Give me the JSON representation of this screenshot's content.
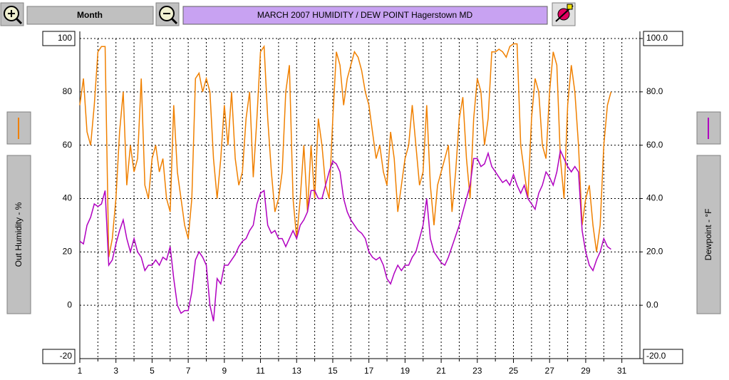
{
  "toolbar": {
    "period": "Month"
  },
  "chart_data": {
    "type": "line",
    "title": "MARCH 2007  HUMIDITY / DEW POINT  Hagerstown MD",
    "ylabel": "Out Humidity - %",
    "y2label": "Dewpoint - °F",
    "grid": true,
    "xlim": [
      1,
      32
    ],
    "xticks": [
      1,
      3,
      5,
      7,
      9,
      11,
      13,
      15,
      17,
      19,
      21,
      23,
      25,
      27,
      29,
      31
    ],
    "xminor": [
      2,
      4,
      6,
      8,
      10,
      12,
      14,
      16,
      18,
      20,
      22,
      24,
      26,
      28,
      30
    ],
    "ylim": [
      -20,
      100
    ],
    "yticks": [
      -20,
      0,
      20,
      40,
      60,
      80,
      100
    ],
    "y2lim": [
      -20,
      100
    ],
    "y2ticks": [
      {
        "value": -20,
        "label": "-20.0"
      },
      {
        "value": 0,
        "label": "0.0"
      },
      {
        "value": 20,
        "label": "20.0"
      },
      {
        "value": 40,
        "label": "40.0"
      },
      {
        "value": 60,
        "label": "60.0"
      },
      {
        "value": 80,
        "label": "80.0"
      },
      {
        "value": 100,
        "label": "100.0"
      }
    ],
    "x": [
      1.0,
      1.2,
      1.4,
      1.6,
      1.8,
      2.0,
      2.2,
      2.4,
      2.6,
      2.8,
      3.0,
      3.2,
      3.4,
      3.6,
      3.8,
      4.0,
      4.2,
      4.4,
      4.6,
      4.8,
      5.0,
      5.2,
      5.4,
      5.6,
      5.8,
      6.0,
      6.2,
      6.4,
      6.6,
      6.8,
      7.0,
      7.2,
      7.4,
      7.6,
      7.8,
      8.0,
      8.2,
      8.4,
      8.6,
      8.8,
      9.0,
      9.2,
      9.4,
      9.6,
      9.8,
      10.0,
      10.2,
      10.4,
      10.6,
      10.8,
      11.0,
      11.2,
      11.4,
      11.6,
      11.8,
      12.0,
      12.2,
      12.4,
      12.6,
      12.8,
      13.0,
      13.2,
      13.4,
      13.6,
      13.8,
      14.0,
      14.2,
      14.4,
      14.6,
      14.8,
      15.0,
      15.2,
      15.4,
      15.6,
      15.8,
      16.0,
      16.2,
      16.4,
      16.6,
      16.8,
      17.0,
      17.2,
      17.4,
      17.6,
      17.8,
      18.0,
      18.2,
      18.4,
      18.6,
      18.8,
      19.0,
      19.2,
      19.4,
      19.6,
      19.8,
      20.0,
      20.2,
      20.4,
      20.6,
      20.8,
      21.0,
      21.2,
      21.4,
      21.6,
      21.8,
      22.0,
      22.2,
      22.4,
      22.6,
      22.8,
      23.0,
      23.2,
      23.4,
      23.6,
      23.8,
      24.0,
      24.2,
      24.4,
      24.6,
      24.8,
      25.0,
      25.2,
      25.4,
      25.6,
      25.8,
      26.0,
      26.2,
      26.4,
      26.6,
      26.8,
      27.0,
      27.2,
      27.4,
      27.6,
      27.8,
      28.0,
      28.2,
      28.4,
      28.6,
      28.8,
      29.0,
      29.2,
      29.4,
      29.6,
      29.8,
      30.0,
      30.2,
      30.4
    ],
    "series": [
      {
        "name": "Out Humidity",
        "color": "#f08000",
        "axis": "y",
        "values": [
          75,
          85,
          65,
          60,
          75,
          95,
          97,
          97,
          18,
          25,
          40,
          65,
          80,
          45,
          60,
          50,
          55,
          85,
          45,
          40,
          55,
          60,
          50,
          55,
          40,
          35,
          75,
          50,
          40,
          30,
          25,
          40,
          85,
          87,
          80,
          85,
          80,
          55,
          40,
          55,
          75,
          60,
          80,
          55,
          45,
          50,
          70,
          80,
          48,
          70,
          95,
          97,
          70,
          50,
          35,
          40,
          50,
          80,
          90,
          40,
          25,
          40,
          60,
          35,
          60,
          40,
          70,
          60,
          45,
          40,
          70,
          95,
          90,
          75,
          85,
          90,
          95,
          93,
          88,
          80,
          75,
          65,
          55,
          60,
          50,
          45,
          65,
          55,
          35,
          45,
          55,
          60,
          75,
          60,
          45,
          50,
          75,
          45,
          30,
          45,
          50,
          55,
          60,
          35,
          50,
          70,
          78,
          55,
          40,
          70,
          85,
          80,
          60,
          70,
          95,
          95,
          96,
          95,
          93,
          97,
          98,
          98,
          60,
          50,
          40,
          70,
          85,
          80,
          60,
          55,
          80,
          95,
          90,
          55,
          40,
          75,
          90,
          80,
          60,
          30,
          40,
          45,
          30,
          20,
          30,
          60,
          75,
          80
        ]
      },
      {
        "name": "Dewpoint",
        "color": "#b000c0",
        "axis": "y2",
        "values": [
          24,
          23,
          30,
          33,
          38,
          37,
          38,
          43,
          15,
          17,
          23,
          28,
          32,
          25,
          20,
          25,
          20,
          18,
          13,
          15,
          15,
          17,
          15,
          18,
          17,
          22,
          10,
          0,
          -3,
          -2,
          -2,
          5,
          17,
          20,
          18,
          15,
          0,
          -6,
          10,
          8,
          15,
          15,
          17,
          19,
          22,
          24,
          25,
          28,
          30,
          38,
          42,
          43,
          30,
          27,
          28,
          25,
          25,
          22,
          25,
          28,
          25,
          30,
          32,
          35,
          43,
          43,
          40,
          40,
          45,
          50,
          54,
          53,
          50,
          40,
          35,
          32,
          30,
          28,
          27,
          25,
          20,
          18,
          17,
          18,
          15,
          10,
          8,
          12,
          15,
          13,
          15,
          15,
          18,
          20,
          25,
          30,
          40,
          25,
          20,
          18,
          16,
          15,
          18,
          22,
          26,
          30,
          35,
          40,
          45,
          55,
          55,
          52,
          53,
          57,
          52,
          50,
          48,
          46,
          47,
          45,
          49,
          45,
          42,
          45,
          40,
          38,
          36,
          42,
          45,
          50,
          48,
          45,
          50,
          58,
          55,
          52,
          50,
          52,
          50,
          28,
          20,
          15,
          13,
          17,
          20,
          25,
          22,
          21
        ]
      }
    ]
  }
}
